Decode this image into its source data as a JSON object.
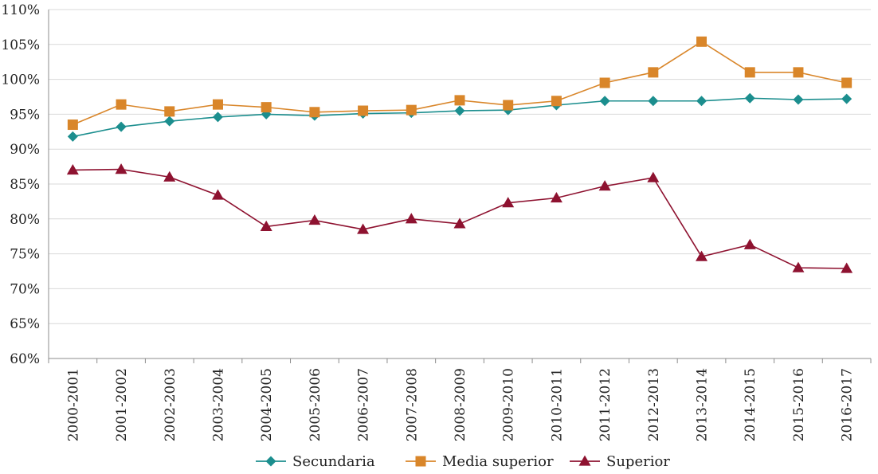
{
  "chart_data": {
    "type": "line",
    "title": "",
    "xlabel": "",
    "ylabel": "",
    "ylim": [
      60,
      110
    ],
    "yticks": [
      60,
      65,
      70,
      75,
      80,
      85,
      90,
      95,
      100,
      105,
      110
    ],
    "ytick_labels": [
      "60%",
      "65%",
      "70%",
      "75%",
      "80%",
      "85%",
      "90%",
      "95%",
      "100%",
      "105%",
      "110%"
    ],
    "grid": true,
    "legend_position": "bottom",
    "categories": [
      "2000-2001",
      "2001-2002",
      "2002-2003",
      "2003-2004",
      "2004-2005",
      "2005-2006",
      "2006-2007",
      "2007-2008",
      "2008-2009",
      "2009-2010",
      "2010-2011",
      "2011-2012",
      "2012-2013",
      "2013-2014",
      "2014-2015",
      "2015-2016",
      "2016-2017"
    ],
    "series": [
      {
        "name": "Secundaria",
        "marker": "diamond",
        "color": "#1b8e8e",
        "values": [
          91.8,
          93.2,
          94.0,
          94.6,
          95.0,
          94.8,
          95.1,
          95.2,
          95.5,
          95.6,
          96.3,
          96.9,
          96.9,
          96.9,
          97.3,
          97.1,
          97.2
        ]
      },
      {
        "name": "Media superior",
        "marker": "square",
        "color": "#d9862a",
        "values": [
          93.5,
          96.4,
          95.4,
          96.4,
          96.0,
          95.3,
          95.5,
          95.6,
          97.0,
          96.3,
          96.9,
          99.5,
          101.0,
          105.4,
          101.0,
          101.0,
          99.5
        ]
      },
      {
        "name": "Superior",
        "marker": "triangle",
        "color": "#8e1230",
        "values": [
          87.0,
          87.1,
          86.0,
          83.4,
          78.9,
          79.8,
          78.5,
          80.0,
          79.3,
          82.3,
          83.0,
          84.7,
          85.9,
          74.6,
          76.3,
          73.0,
          72.9
        ]
      }
    ]
  }
}
